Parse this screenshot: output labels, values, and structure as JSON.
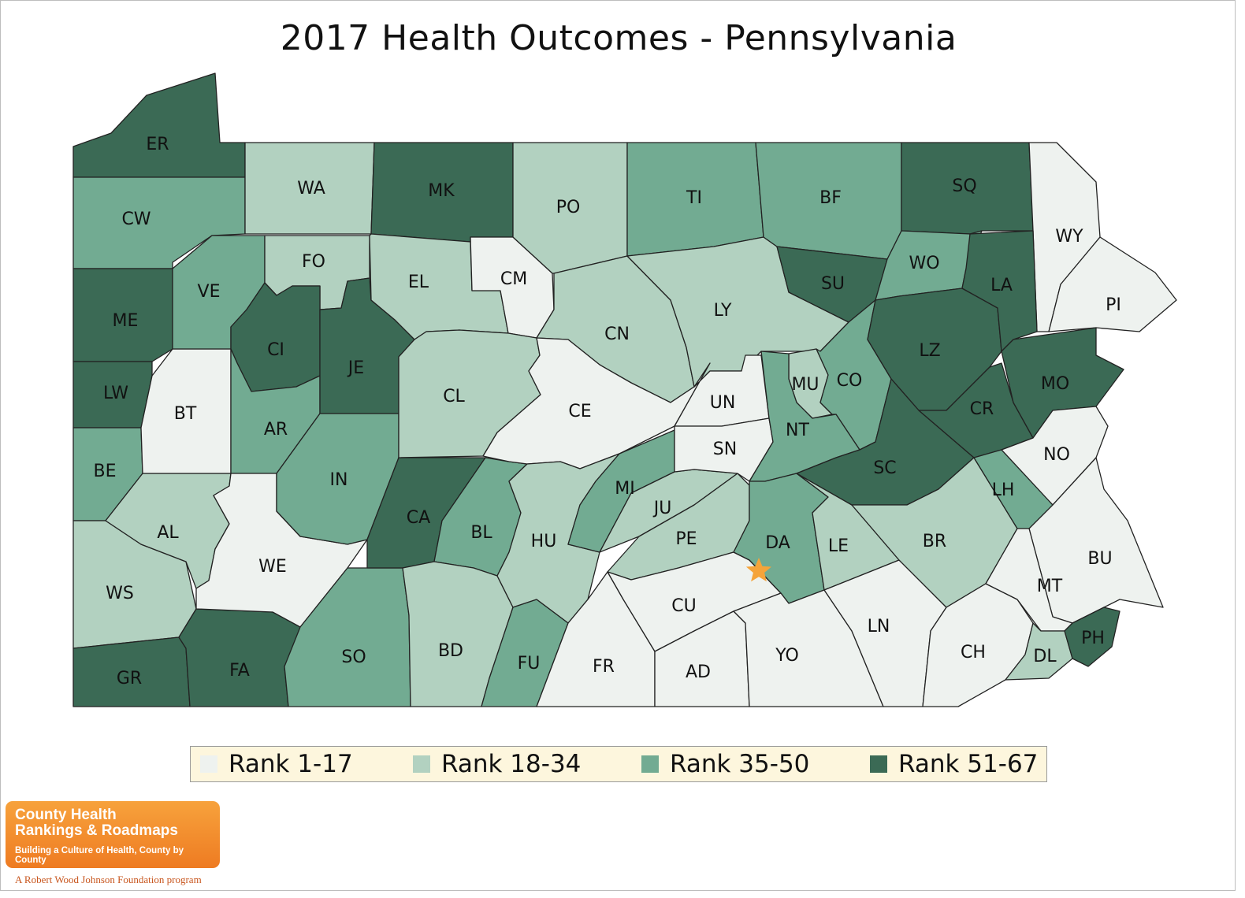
{
  "title": "2017 Health Outcomes - Pennsylvania",
  "colors": {
    "tier1": "#eef2ef",
    "tier2": "#b2d1c0",
    "tier3": "#72ab92",
    "tier4": "#3b6a55",
    "border": "#222222",
    "capital_star": "#f5a43a"
  },
  "legend": [
    {
      "label": "Rank 1-17",
      "tier": "tier1"
    },
    {
      "label": "Rank 18-34",
      "tier": "tier2"
    },
    {
      "label": "Rank 35-50",
      "tier": "tier3"
    },
    {
      "label": "Rank 51-67",
      "tier": "tier4"
    }
  ],
  "counties": [
    {
      "abbr": "ER",
      "tier": "tier4"
    },
    {
      "abbr": "CW",
      "tier": "tier3"
    },
    {
      "abbr": "ME",
      "tier": "tier4"
    },
    {
      "abbr": "LW",
      "tier": "tier4"
    },
    {
      "abbr": "BE",
      "tier": "tier3"
    },
    {
      "abbr": "WS",
      "tier": "tier2"
    },
    {
      "abbr": "GR",
      "tier": "tier4"
    },
    {
      "abbr": "FA",
      "tier": "tier4"
    },
    {
      "abbr": "AL",
      "tier": "tier2"
    },
    {
      "abbr": "BT",
      "tier": "tier1"
    },
    {
      "abbr": "VE",
      "tier": "tier3"
    },
    {
      "abbr": "WA",
      "tier": "tier2"
    },
    {
      "abbr": "FO",
      "tier": "tier2"
    },
    {
      "abbr": "CI",
      "tier": "tier4"
    },
    {
      "abbr": "AR",
      "tier": "tier3"
    },
    {
      "abbr": "WE",
      "tier": "tier1"
    },
    {
      "abbr": "JE",
      "tier": "tier4"
    },
    {
      "abbr": "IN",
      "tier": "tier3"
    },
    {
      "abbr": "SO",
      "tier": "tier3"
    },
    {
      "abbr": "CA",
      "tier": "tier4"
    },
    {
      "abbr": "MK",
      "tier": "tier4"
    },
    {
      "abbr": "EL",
      "tier": "tier2"
    },
    {
      "abbr": "CM",
      "tier": "tier1"
    },
    {
      "abbr": "CL",
      "tier": "tier2"
    },
    {
      "abbr": "BL",
      "tier": "tier3"
    },
    {
      "abbr": "BD",
      "tier": "tier2"
    },
    {
      "abbr": "PO",
      "tier": "tier2"
    },
    {
      "abbr": "CN",
      "tier": "tier2"
    },
    {
      "abbr": "CE",
      "tier": "tier1"
    },
    {
      "abbr": "HU",
      "tier": "tier2"
    },
    {
      "abbr": "FU",
      "tier": "tier3"
    },
    {
      "abbr": "FR",
      "tier": "tier1"
    },
    {
      "abbr": "MI",
      "tier": "tier3"
    },
    {
      "abbr": "JU",
      "tier": "tier2"
    },
    {
      "abbr": "PE",
      "tier": "tier2"
    },
    {
      "abbr": "CU",
      "tier": "tier1"
    },
    {
      "abbr": "AD",
      "tier": "tier1"
    },
    {
      "abbr": "TI",
      "tier": "tier3"
    },
    {
      "abbr": "LY",
      "tier": "tier2"
    },
    {
      "abbr": "UN",
      "tier": "tier1"
    },
    {
      "abbr": "SN",
      "tier": "tier1"
    },
    {
      "abbr": "BF",
      "tier": "tier3"
    },
    {
      "abbr": "SU",
      "tier": "tier4"
    },
    {
      "abbr": "MU",
      "tier": "tier2"
    },
    {
      "abbr": "CO",
      "tier": "tier3"
    },
    {
      "abbr": "NT",
      "tier": "tier3"
    },
    {
      "abbr": "DA",
      "tier": "tier3"
    },
    {
      "abbr": "LE",
      "tier": "tier2"
    },
    {
      "abbr": "YO",
      "tier": "tier1"
    },
    {
      "abbr": "LN",
      "tier": "tier1"
    },
    {
      "abbr": "SQ",
      "tier": "tier4"
    },
    {
      "abbr": "WO",
      "tier": "tier3"
    },
    {
      "abbr": "LZ",
      "tier": "tier4"
    },
    {
      "abbr": "SC",
      "tier": "tier4"
    },
    {
      "abbr": "CR",
      "tier": "tier4"
    },
    {
      "abbr": "BR",
      "tier": "tier2"
    },
    {
      "abbr": "LH",
      "tier": "tier3"
    },
    {
      "abbr": "CH",
      "tier": "tier1"
    },
    {
      "abbr": "WY",
      "tier": "tier1"
    },
    {
      "abbr": "LA",
      "tier": "tier4"
    },
    {
      "abbr": "PI",
      "tier": "tier1"
    },
    {
      "abbr": "MO",
      "tier": "tier4"
    },
    {
      "abbr": "NO",
      "tier": "tier1"
    },
    {
      "abbr": "BU",
      "tier": "tier1"
    },
    {
      "abbr": "MT",
      "tier": "tier1"
    },
    {
      "abbr": "DL",
      "tier": "tier2"
    },
    {
      "abbr": "PH",
      "tier": "tier4"
    }
  ],
  "logo": {
    "line1": "County Health",
    "line2": "Rankings & Roadmaps",
    "tagline": "Building a Culture of Health, County by County",
    "footer": "A Robert Wood Johnson Foundation program"
  }
}
